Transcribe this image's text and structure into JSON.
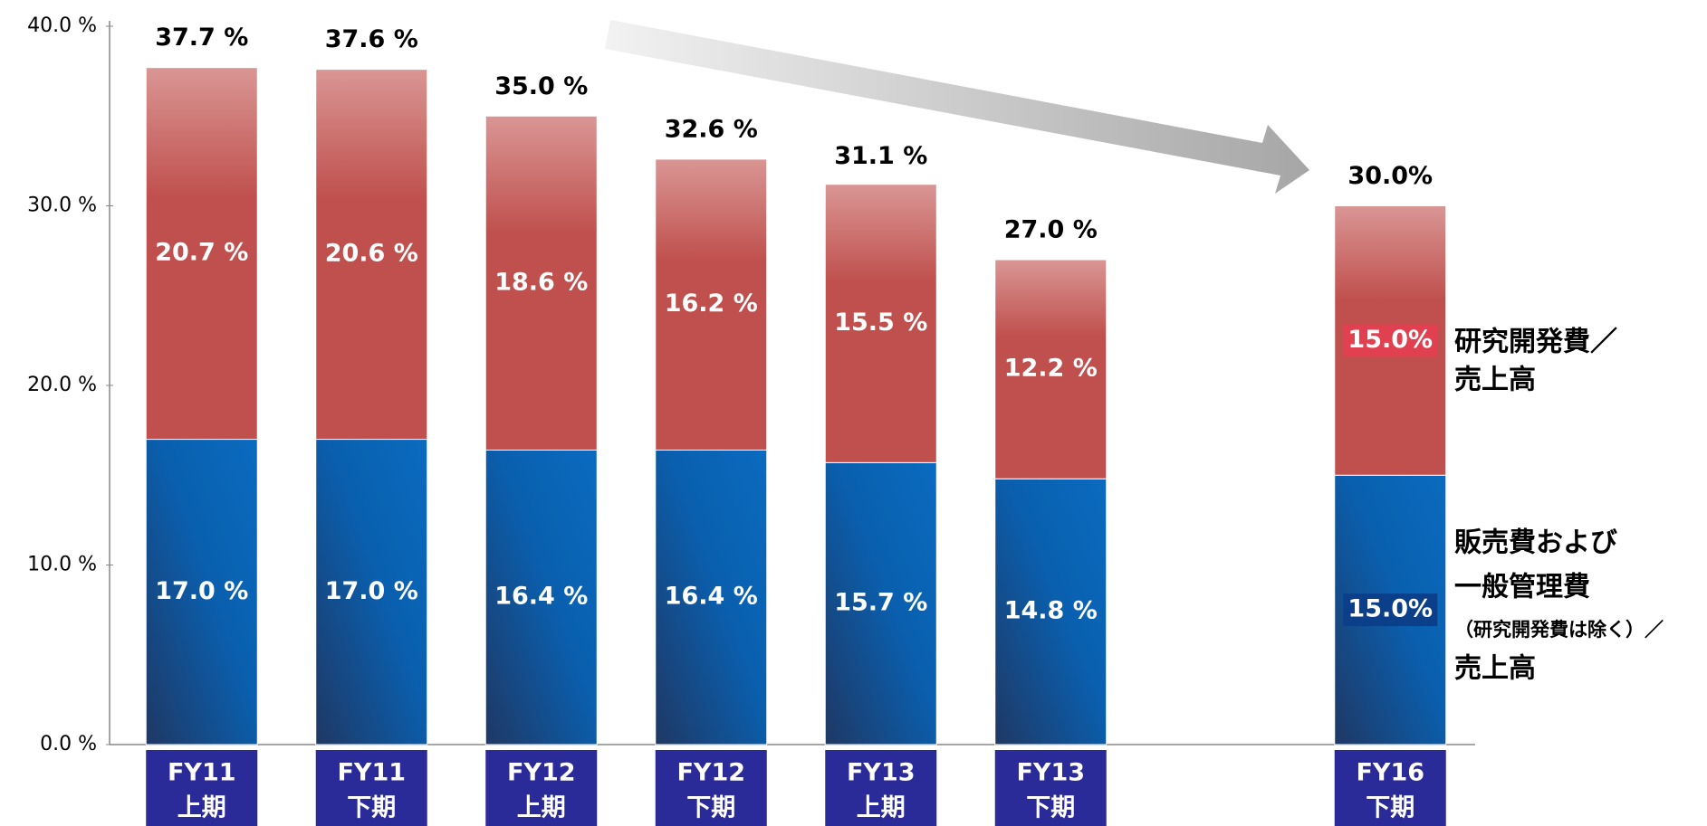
{
  "chart_data": {
    "type": "stacked_bar",
    "categories": [
      [
        "FY11",
        "上期"
      ],
      [
        "FY11",
        "下期"
      ],
      [
        "FY12",
        "上期"
      ],
      [
        "FY12",
        "下期"
      ],
      [
        "FY13",
        "上期"
      ],
      [
        "FY13",
        "下期"
      ],
      null,
      [
        "FY16",
        "下期"
      ]
    ],
    "series": [
      {
        "name": [
          "販売費および",
          "一般管理費",
          "（研究開発費は除く）／",
          "売上高"
        ],
        "color": "#0a6bbf",
        "values": [
          17.0,
          17.0,
          16.4,
          16.4,
          15.7,
          14.8,
          null,
          15.0
        ],
        "value_labels": [
          "17.0 %",
          "17.0 %",
          "16.4 %",
          "16.4 %",
          "15.7 %",
          "14.8 %",
          null,
          "15.0%"
        ]
      },
      {
        "name": [
          "研究開発費／",
          "売上高"
        ],
        "color": "#c0504d",
        "values": [
          20.7,
          20.6,
          18.6,
          16.2,
          15.5,
          12.2,
          null,
          15.0
        ],
        "value_labels": [
          "20.7 %",
          "20.6 %",
          "18.6 %",
          "16.2 %",
          "15.5 %",
          "12.2 %",
          null,
          "15.0%"
        ]
      }
    ],
    "totals": [
      37.7,
      37.6,
      35.0,
      32.6,
      31.1,
      27.0,
      null,
      30.0
    ],
    "total_labels": [
      "37.7 %",
      "37.6 %",
      "35.0 %",
      "32.6 %",
      "31.1 %",
      "27.0 %",
      null,
      "30.0%"
    ],
    "ylim": [
      0,
      40
    ],
    "yticks": [
      {
        "value": 0,
        "label": "0.0 %"
      },
      {
        "value": 10,
        "label": "10.0 %"
      },
      {
        "value": 20,
        "label": "20.0 %"
      },
      {
        "value": 30,
        "label": "30.0 %"
      },
      {
        "value": 40,
        "label": "40.0 %"
      }
    ]
  }
}
